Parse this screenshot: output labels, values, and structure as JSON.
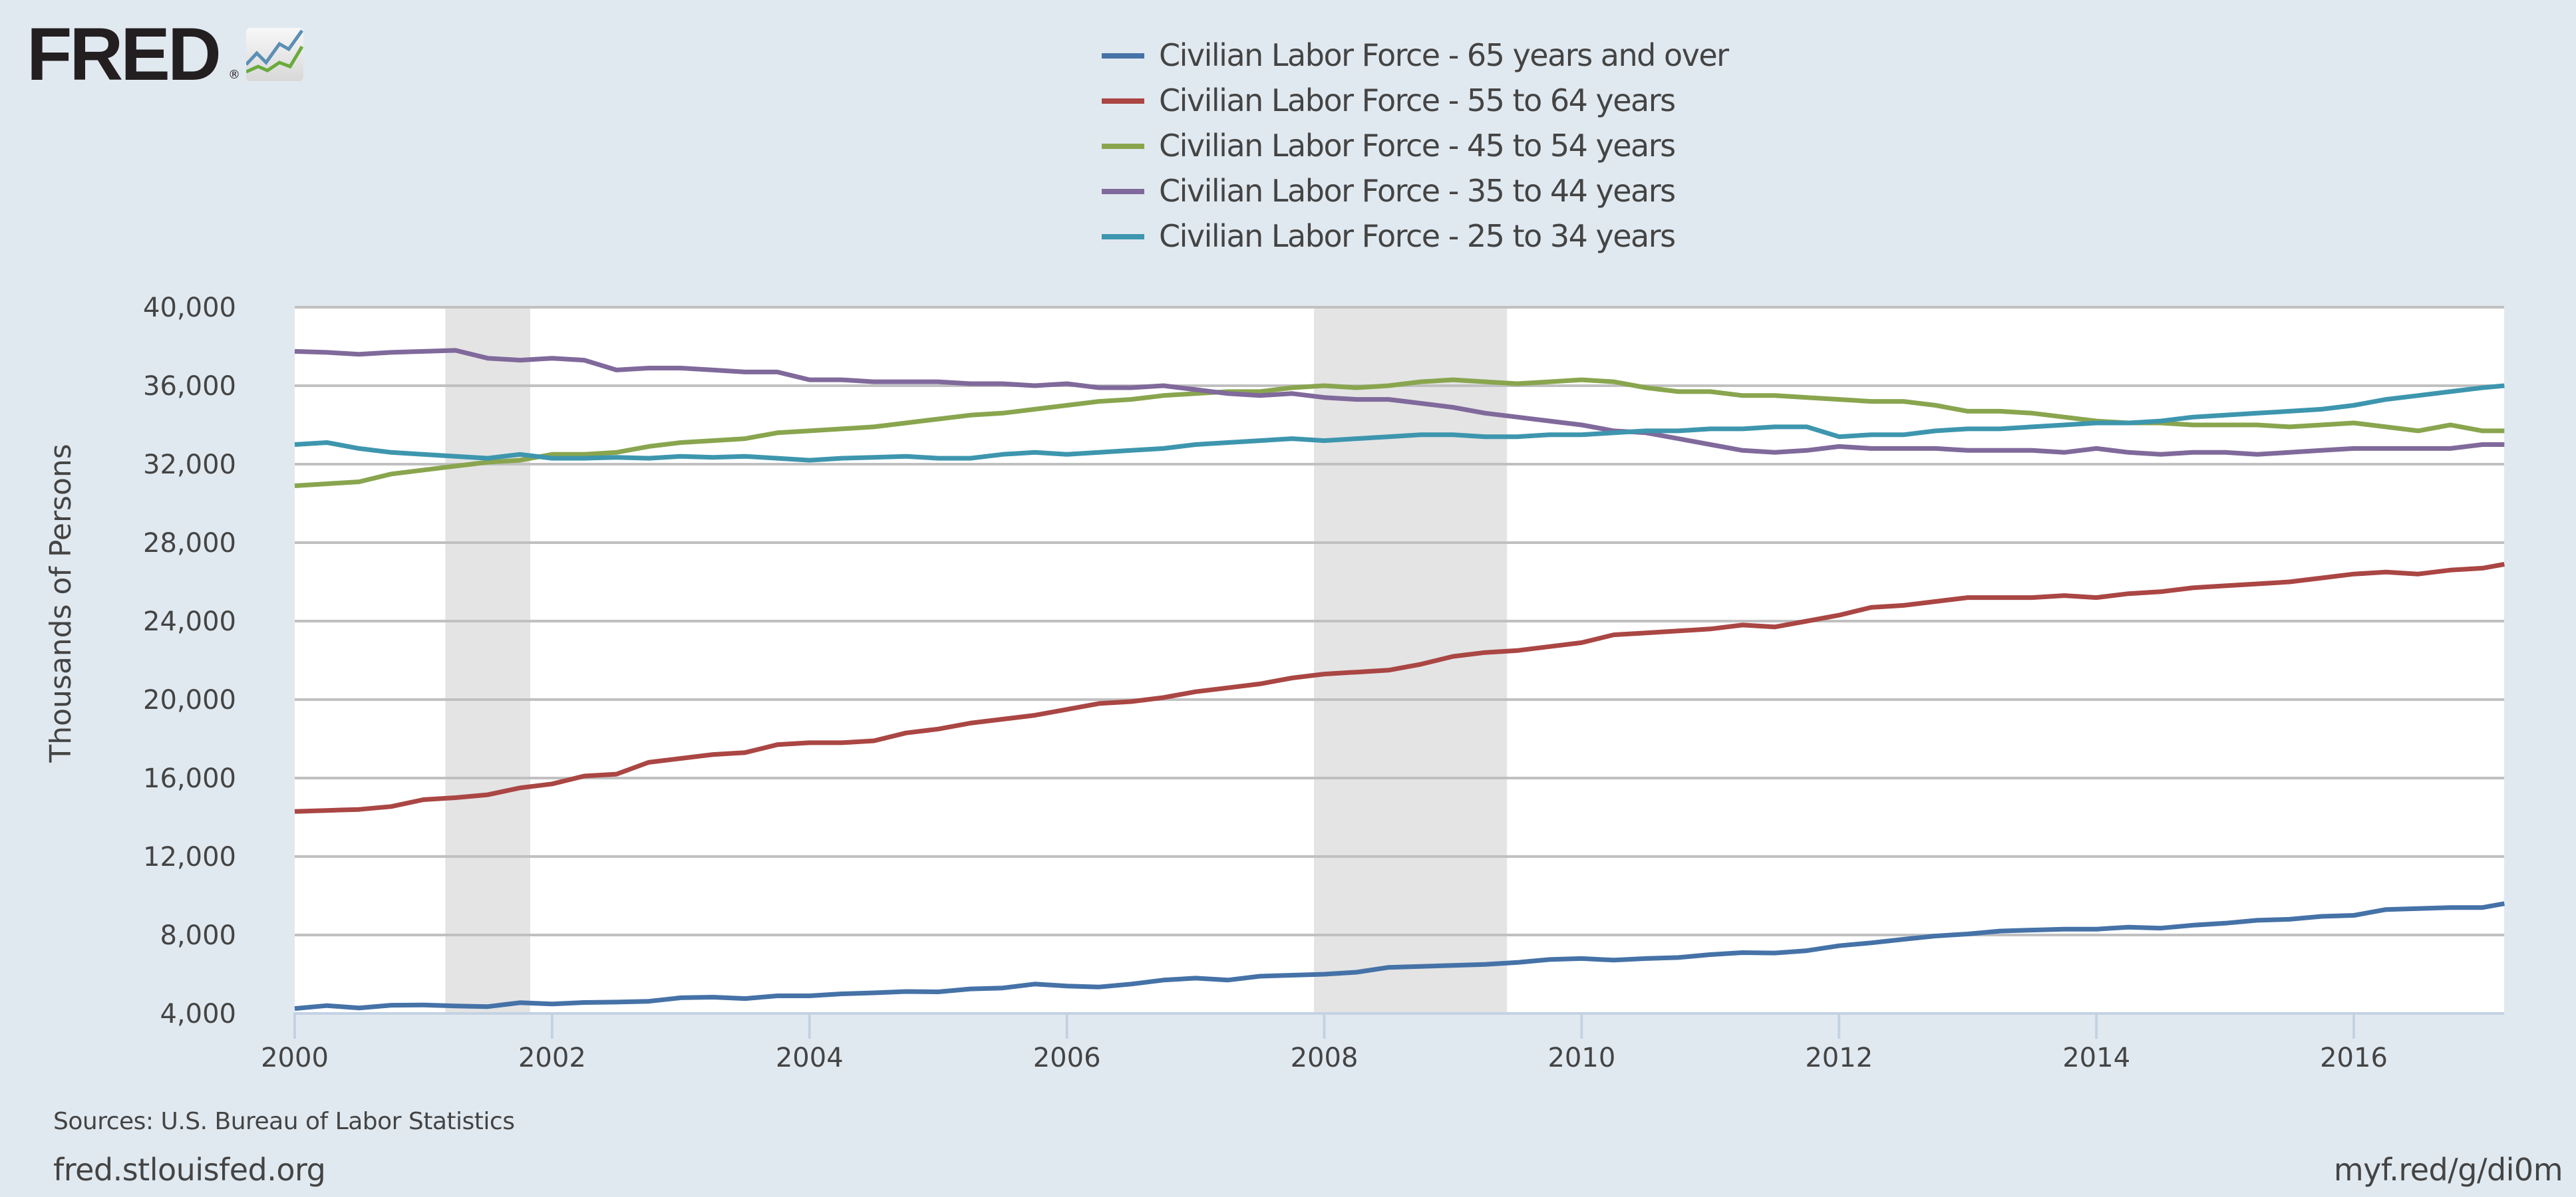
{
  "logo": {
    "text": "FRED",
    "reg": "®"
  },
  "footer": {
    "sources": "Sources: U.S. Bureau of Labor Statistics",
    "site": "fred.stlouisfed.org",
    "shortlink": "myf.red/g/di0m"
  },
  "colors": {
    "background": "#e1e9f0",
    "plot_background": "#ffffff",
    "grid": "#c0c0c0",
    "recession": "#e4e4e4",
    "axis": "#c3d2e3",
    "text": "#444444"
  },
  "chart_data": {
    "type": "line",
    "title": "",
    "xlabel": "",
    "ylabel": "Thousands of Persons",
    "xlim": [
      2000.0,
      2017.17
    ],
    "ylim": [
      4000,
      40000
    ],
    "grid": true,
    "legend_position": "top-center",
    "x_ticks": [
      2000,
      2002,
      2004,
      2006,
      2008,
      2010,
      2012,
      2014,
      2016
    ],
    "x_tick_labels": [
      "2000",
      "2002",
      "2004",
      "2006",
      "2008",
      "2010",
      "2012",
      "2014",
      "2016"
    ],
    "y_ticks": [
      4000,
      8000,
      12000,
      16000,
      20000,
      24000,
      28000,
      32000,
      36000,
      40000
    ],
    "y_tick_labels": [
      "4,000",
      "8,000",
      "12,000",
      "16,000",
      "20,000",
      "24,000",
      "28,000",
      "32,000",
      "36,000",
      "40,000"
    ],
    "recessions": [
      {
        "start": 2001.17,
        "end": 2001.83
      },
      {
        "start": 2007.92,
        "end": 2009.42
      }
    ],
    "x": [
      2000.0,
      2000.25,
      2000.5,
      2000.75,
      2001.0,
      2001.25,
      2001.5,
      2001.75,
      2002.0,
      2002.25,
      2002.5,
      2002.75,
      2003.0,
      2003.25,
      2003.5,
      2003.75,
      2004.0,
      2004.25,
      2004.5,
      2004.75,
      2005.0,
      2005.25,
      2005.5,
      2005.75,
      2006.0,
      2006.25,
      2006.5,
      2006.75,
      2007.0,
      2007.25,
      2007.5,
      2007.75,
      2008.0,
      2008.25,
      2008.5,
      2008.75,
      2009.0,
      2009.25,
      2009.5,
      2009.75,
      2010.0,
      2010.25,
      2010.5,
      2010.75,
      2011.0,
      2011.25,
      2011.5,
      2011.75,
      2012.0,
      2012.25,
      2012.5,
      2012.75,
      2013.0,
      2013.25,
      2013.5,
      2013.75,
      2014.0,
      2014.25,
      2014.5,
      2014.75,
      2015.0,
      2015.25,
      2015.5,
      2015.75,
      2016.0,
      2016.25,
      2016.5,
      2016.75,
      2017.0,
      2017.17
    ],
    "series": [
      {
        "name": "Civilian Labor Force - 65 years and over",
        "color": "#4572a7",
        "values": [
          4250,
          4400,
          4280,
          4420,
          4430,
          4380,
          4350,
          4550,
          4480,
          4560,
          4580,
          4620,
          4800,
          4830,
          4760,
          4900,
          4900,
          5000,
          5050,
          5120,
          5100,
          5250,
          5300,
          5500,
          5400,
          5350,
          5500,
          5700,
          5800,
          5700,
          5900,
          5950,
          6000,
          6100,
          6350,
          6400,
          6450,
          6500,
          6600,
          6750,
          6800,
          6720,
          6800,
          6850,
          7000,
          7100,
          7080,
          7200,
          7450,
          7600,
          7780,
          7950,
          8050,
          8200,
          8250,
          8300,
          8300,
          8400,
          8350,
          8500,
          8600,
          8750,
          8800,
          8950,
          9000,
          9300,
          9350,
          9400,
          9400,
          9600
        ]
      },
      {
        "name": "Civilian Labor Force - 55 to 64 years",
        "color": "#aa4643",
        "values": [
          14300,
          14350,
          14400,
          14550,
          14900,
          15000,
          15150,
          15500,
          15700,
          16100,
          16200,
          16800,
          17000,
          17200,
          17300,
          17700,
          17800,
          17800,
          17900,
          18300,
          18500,
          18800,
          19000,
          19200,
          19500,
          19800,
          19900,
          20100,
          20400,
          20600,
          20800,
          21100,
          21300,
          21400,
          21500,
          21800,
          22200,
          22400,
          22500,
          22700,
          22900,
          23300,
          23400,
          23500,
          23600,
          23800,
          23700,
          24000,
          24300,
          24700,
          24800,
          25000,
          25200,
          25200,
          25200,
          25300,
          25200,
          25400,
          25500,
          25700,
          25800,
          25900,
          26000,
          26200,
          26400,
          26500,
          26400,
          26600,
          26700,
          26900
        ]
      },
      {
        "name": "Civilian Labor Force - 45 to 54 years",
        "color": "#89a54e",
        "values": [
          30900,
          31000,
          31100,
          31500,
          31700,
          31900,
          32100,
          32200,
          32500,
          32500,
          32600,
          32900,
          33100,
          33200,
          33300,
          33600,
          33700,
          33800,
          33900,
          34100,
          34300,
          34500,
          34600,
          34800,
          35000,
          35200,
          35300,
          35500,
          35600,
          35700,
          35700,
          35900,
          36000,
          35900,
          36000,
          36200,
          36300,
          36200,
          36100,
          36200,
          36300,
          36200,
          35900,
          35700,
          35700,
          35500,
          35500,
          35400,
          35300,
          35200,
          35200,
          35000,
          34700,
          34700,
          34600,
          34400,
          34200,
          34100,
          34100,
          34000,
          34000,
          34000,
          33900,
          34000,
          34100,
          33900,
          33700,
          34000,
          33700,
          33700
        ]
      },
      {
        "name": "Civilian Labor Force - 35 to 44 years",
        "color": "#80699b",
        "values": [
          37750,
          37700,
          37600,
          37700,
          37750,
          37800,
          37400,
          37300,
          37400,
          37300,
          36800,
          36900,
          36900,
          36800,
          36700,
          36700,
          36300,
          36300,
          36200,
          36200,
          36200,
          36100,
          36100,
          36000,
          36100,
          35900,
          35900,
          36000,
          35800,
          35600,
          35500,
          35600,
          35400,
          35300,
          35300,
          35100,
          34900,
          34600,
          34400,
          34200,
          34000,
          33700,
          33600,
          33300,
          33000,
          32700,
          32600,
          32700,
          32900,
          32800,
          32800,
          32800,
          32700,
          32700,
          32700,
          32600,
          32800,
          32600,
          32500,
          32600,
          32600,
          32500,
          32600,
          32700,
          32800,
          32800,
          32800,
          32800,
          33000,
          33000
        ]
      },
      {
        "name": "Civilian Labor Force - 25 to 34 years",
        "color": "#3d96ae",
        "values": [
          33000,
          33100,
          32800,
          32600,
          32500,
          32400,
          32300,
          32500,
          32300,
          32300,
          32350,
          32300,
          32400,
          32350,
          32400,
          32300,
          32200,
          32300,
          32350,
          32400,
          32300,
          32300,
          32500,
          32600,
          32500,
          32600,
          32700,
          32800,
          33000,
          33100,
          33200,
          33300,
          33200,
          33300,
          33400,
          33500,
          33500,
          33400,
          33400,
          33500,
          33500,
          33600,
          33700,
          33700,
          33800,
          33800,
          33900,
          33900,
          33400,
          33500,
          33500,
          33700,
          33800,
          33800,
          33900,
          34000,
          34100,
          34100,
          34200,
          34400,
          34500,
          34600,
          34700,
          34800,
          35000,
          35300,
          35500,
          35700,
          35900,
          36000
        ]
      }
    ]
  }
}
